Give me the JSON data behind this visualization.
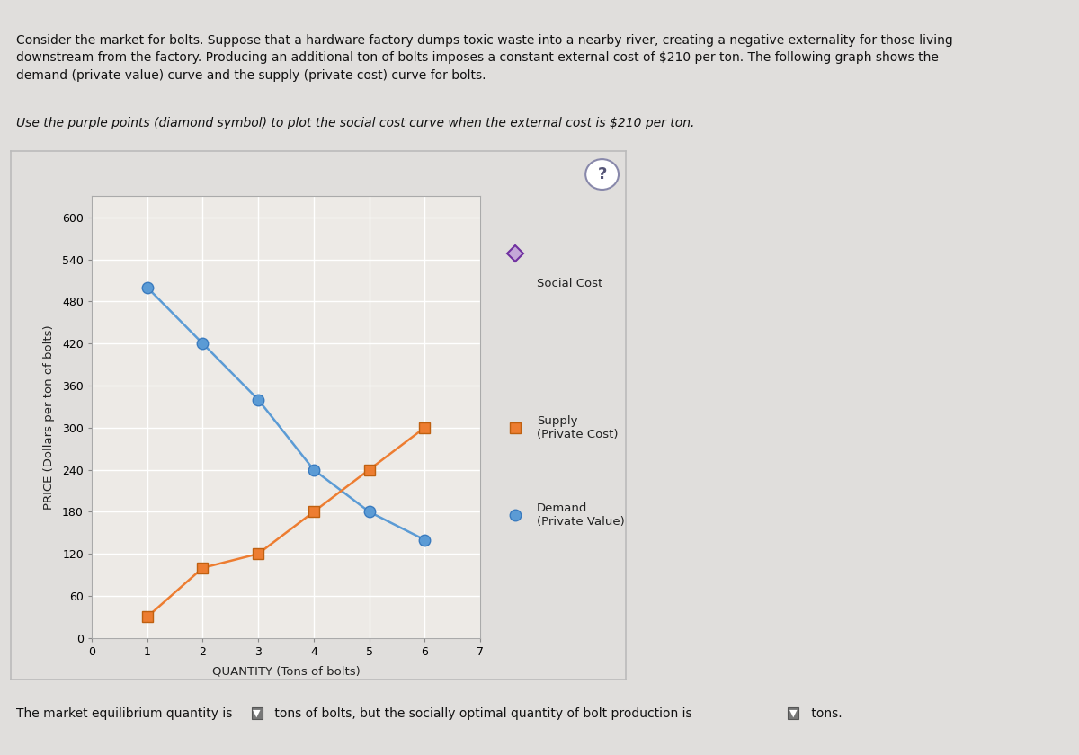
{
  "title_text": "Consider the market for bolts. Suppose that a hardware factory dumps toxic waste into a nearby river, creating a negative externality for those living\ndownstream from the factory. Producing an additional ton of bolts imposes a constant external cost of $210 per ton. The following graph shows the\ndemand (private value) curve and the supply (private cost) curve for bolts.",
  "subtitle_text": "Use the purple points (diamond symbol) to plot the social cost curve when the external cost is $210 per ton.",
  "xlabel": "QUANTITY (Tons of bolts)",
  "ylabel": "PRICE (Dollars per ton of bolts)",
  "xlim": [
    0,
    7
  ],
  "ylim": [
    0,
    630
  ],
  "xticks": [
    0,
    1,
    2,
    3,
    4,
    5,
    6,
    7
  ],
  "yticks": [
    0,
    60,
    120,
    180,
    240,
    300,
    360,
    420,
    480,
    540,
    600
  ],
  "demand_x": [
    1,
    2,
    3,
    4,
    5,
    6
  ],
  "demand_y": [
    500,
    420,
    340,
    240,
    180,
    140
  ],
  "supply_x": [
    1,
    2,
    3,
    4,
    5,
    6
  ],
  "supply_y": [
    30,
    100,
    120,
    180,
    240,
    300
  ],
  "demand_color": "#5B9BD5",
  "supply_color": "#ED7D31",
  "social_cost_color": "#7030A0",
  "social_cost_marker_face": "#C4A8D8",
  "demand_marker": "o",
  "supply_marker": "s",
  "social_cost_marker": "D",
  "background_color": "#E0DEDC",
  "plot_bg_color": "#EDEAE6",
  "chart_border_color": "#BBBBBB",
  "marker_size": 9,
  "line_width": 1.8,
  "grid_color": "#FFFFFF",
  "tick_fontsize": 9,
  "label_fontsize": 9.5,
  "legend_fontsize": 9.5,
  "title_fontsize": 10,
  "subtitle_fontsize": 10
}
